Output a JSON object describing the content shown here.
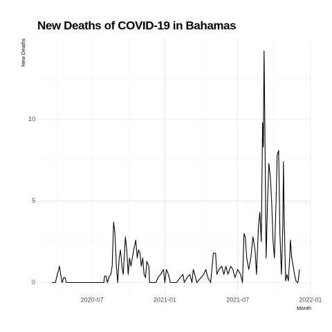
{
  "chart_data": {
    "type": "line",
    "title": "New Deaths of COVID-19 in Bahamas",
    "xlabel": "Month",
    "ylabel": "New Deaths",
    "color": "#000000",
    "grid": true,
    "xlim": [
      2020.129,
      2022.005
    ],
    "ylim": [
      -0.7,
      14.9
    ],
    "xticks": [
      {
        "value": 2020.5,
        "label": "2020-07"
      },
      {
        "value": 2021.0,
        "label": "2021-01"
      },
      {
        "value": 2021.5,
        "label": "2021-07"
      },
      {
        "value": 2022.0,
        "label": "2022-01"
      }
    ],
    "yticks": [
      0,
      5,
      10
    ],
    "x": [
      2020.224,
      2020.248,
      2020.262,
      2020.271,
      2020.276,
      2020.286,
      2020.295,
      2020.305,
      2020.314,
      2020.324,
      2020.343,
      2020.581,
      2020.586,
      2020.595,
      2020.605,
      2020.619,
      2020.629,
      2020.638,
      2020.648,
      2020.657,
      2020.667,
      2020.676,
      2020.686,
      2020.695,
      2020.705,
      2020.714,
      2020.729,
      2020.738,
      2020.748,
      2020.757,
      2020.767,
      2020.776,
      2020.786,
      2020.8,
      2020.81,
      2020.819,
      2020.829,
      2020.838,
      2020.848,
      2020.857,
      2020.867,
      2020.876,
      2020.89,
      2020.895,
      2020.938,
      2020.952,
      2020.971,
      2020.99,
      2021.0,
      2021.01,
      2021.024,
      2021.038,
      2021.081,
      2021.105,
      2021.124,
      2021.133,
      2021.152,
      2021.171,
      2021.186,
      2021.195,
      2021.205,
      2021.219,
      2021.248,
      2021.267,
      2021.281,
      2021.295,
      2021.314,
      2021.333,
      2021.348,
      2021.357,
      2021.371,
      2021.39,
      2021.405,
      2021.419,
      2021.433,
      2021.452,
      2021.467,
      2021.481,
      2021.5,
      2021.519,
      2021.533,
      2021.543,
      2021.552,
      2021.562,
      2021.576,
      2021.59,
      2021.605,
      2021.619,
      2021.629,
      2021.643,
      2021.652,
      2021.662,
      2021.671,
      2021.676,
      2021.681,
      2021.686,
      2021.695,
      2021.705,
      2021.714,
      2021.724,
      2021.733,
      2021.743,
      2021.752,
      2021.762,
      2021.771,
      2021.781,
      2021.79,
      2021.8,
      2021.81,
      2021.814,
      2021.819,
      2021.829,
      2021.838,
      2021.848,
      2021.857,
      2021.862,
      2021.871,
      2021.881,
      2021.89,
      2021.9,
      2021.91,
      2021.914,
      2021.924
    ],
    "values": [
      0,
      0,
      0.5,
      0.8,
      1,
      0.4,
      0,
      0.3,
      0.3,
      0,
      0,
      0,
      0.4,
      0.4,
      0,
      0.4,
      0.5,
      1,
      3.7,
      3,
      1,
      0,
      1.5,
      2,
      1,
      0.5,
      2.8,
      2,
      0.5,
      1.5,
      1,
      1.5,
      2,
      2.6,
      1.5,
      2,
      1.8,
      1,
      1.5,
      0.5,
      0.3,
      1.3,
      1,
      0,
      0,
      0.3,
      0.5,
      0.8,
      0,
      0.8,
      0.5,
      0,
      0,
      0.3,
      0.5,
      0,
      0.3,
      0.5,
      0,
      0.8,
      0.5,
      0,
      0.3,
      0.5,
      0.8,
      0.3,
      0,
      1.8,
      1.8,
      0.5,
      0.8,
      1,
      0.5,
      1,
      0.5,
      1,
      0.8,
      0.3,
      0.8,
      0.5,
      0,
      3,
      2.8,
      1.5,
      0.8,
      1.5,
      2.8,
      2,
      0.5,
      3.5,
      4.3,
      2.5,
      9.8,
      8.3,
      14.2,
      10,
      1.5,
      5,
      7.3,
      6.5,
      5,
      2.5,
      1.5,
      4.5,
      7.8,
      8.1,
      3,
      0.5,
      3.5,
      7.4,
      4,
      0.1,
      0.5,
      0.1,
      1.5,
      2.6,
      1.5,
      1,
      0.5,
      0.1,
      0,
      0,
      0.8
    ]
  }
}
